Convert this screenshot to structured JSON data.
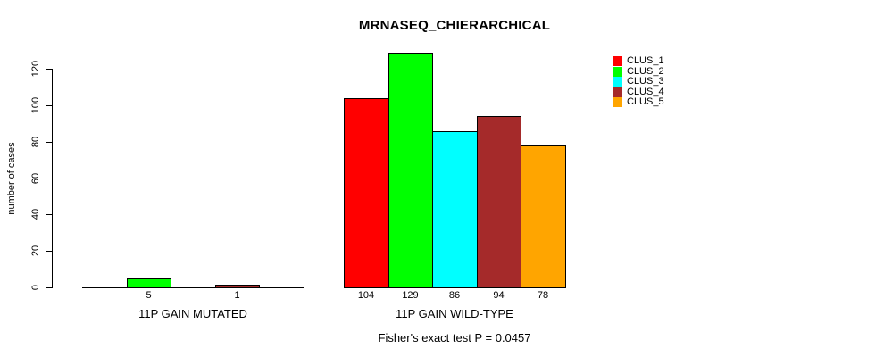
{
  "page": {
    "background_color": "#FFFFFF",
    "text_color": "#000000",
    "axis_color": "#000000"
  },
  "chart_data": {
    "type": "bar",
    "title": "MRNASEQ_CHIERARCHICAL",
    "ylabel": "number of cases",
    "xlabel": "",
    "yticks": [
      0,
      20,
      40,
      60,
      80,
      100,
      120
    ],
    "ylim": [
      0,
      130
    ],
    "grid": false,
    "legend_position": "top-right",
    "categories": [
      "11P GAIN MUTATED",
      "11P GAIN WILD-TYPE"
    ],
    "series": [
      {
        "name": "CLUS_1",
        "color": "#FF0000",
        "values": [
          0,
          104
        ]
      },
      {
        "name": "CLUS_2",
        "color": "#00FF00",
        "values": [
          5,
          129
        ]
      },
      {
        "name": "CLUS_3",
        "color": "#00FFFF",
        "values": [
          0,
          86
        ]
      },
      {
        "name": "CLUS_4",
        "color": "#A52A2A",
        "values": [
          1,
          94
        ]
      },
      {
        "name": "CLUS_5",
        "color": "#FFA500",
        "values": [
          0,
          78
        ]
      }
    ],
    "bar_value_labels": {
      "11P GAIN MUTATED": [
        "",
        "5",
        "",
        "1",
        ""
      ],
      "11P GAIN WILD-TYPE": [
        "104",
        "129",
        "86",
        "94",
        "78"
      ]
    },
    "annotation": "Fisher's exact test P = 0.0457"
  }
}
